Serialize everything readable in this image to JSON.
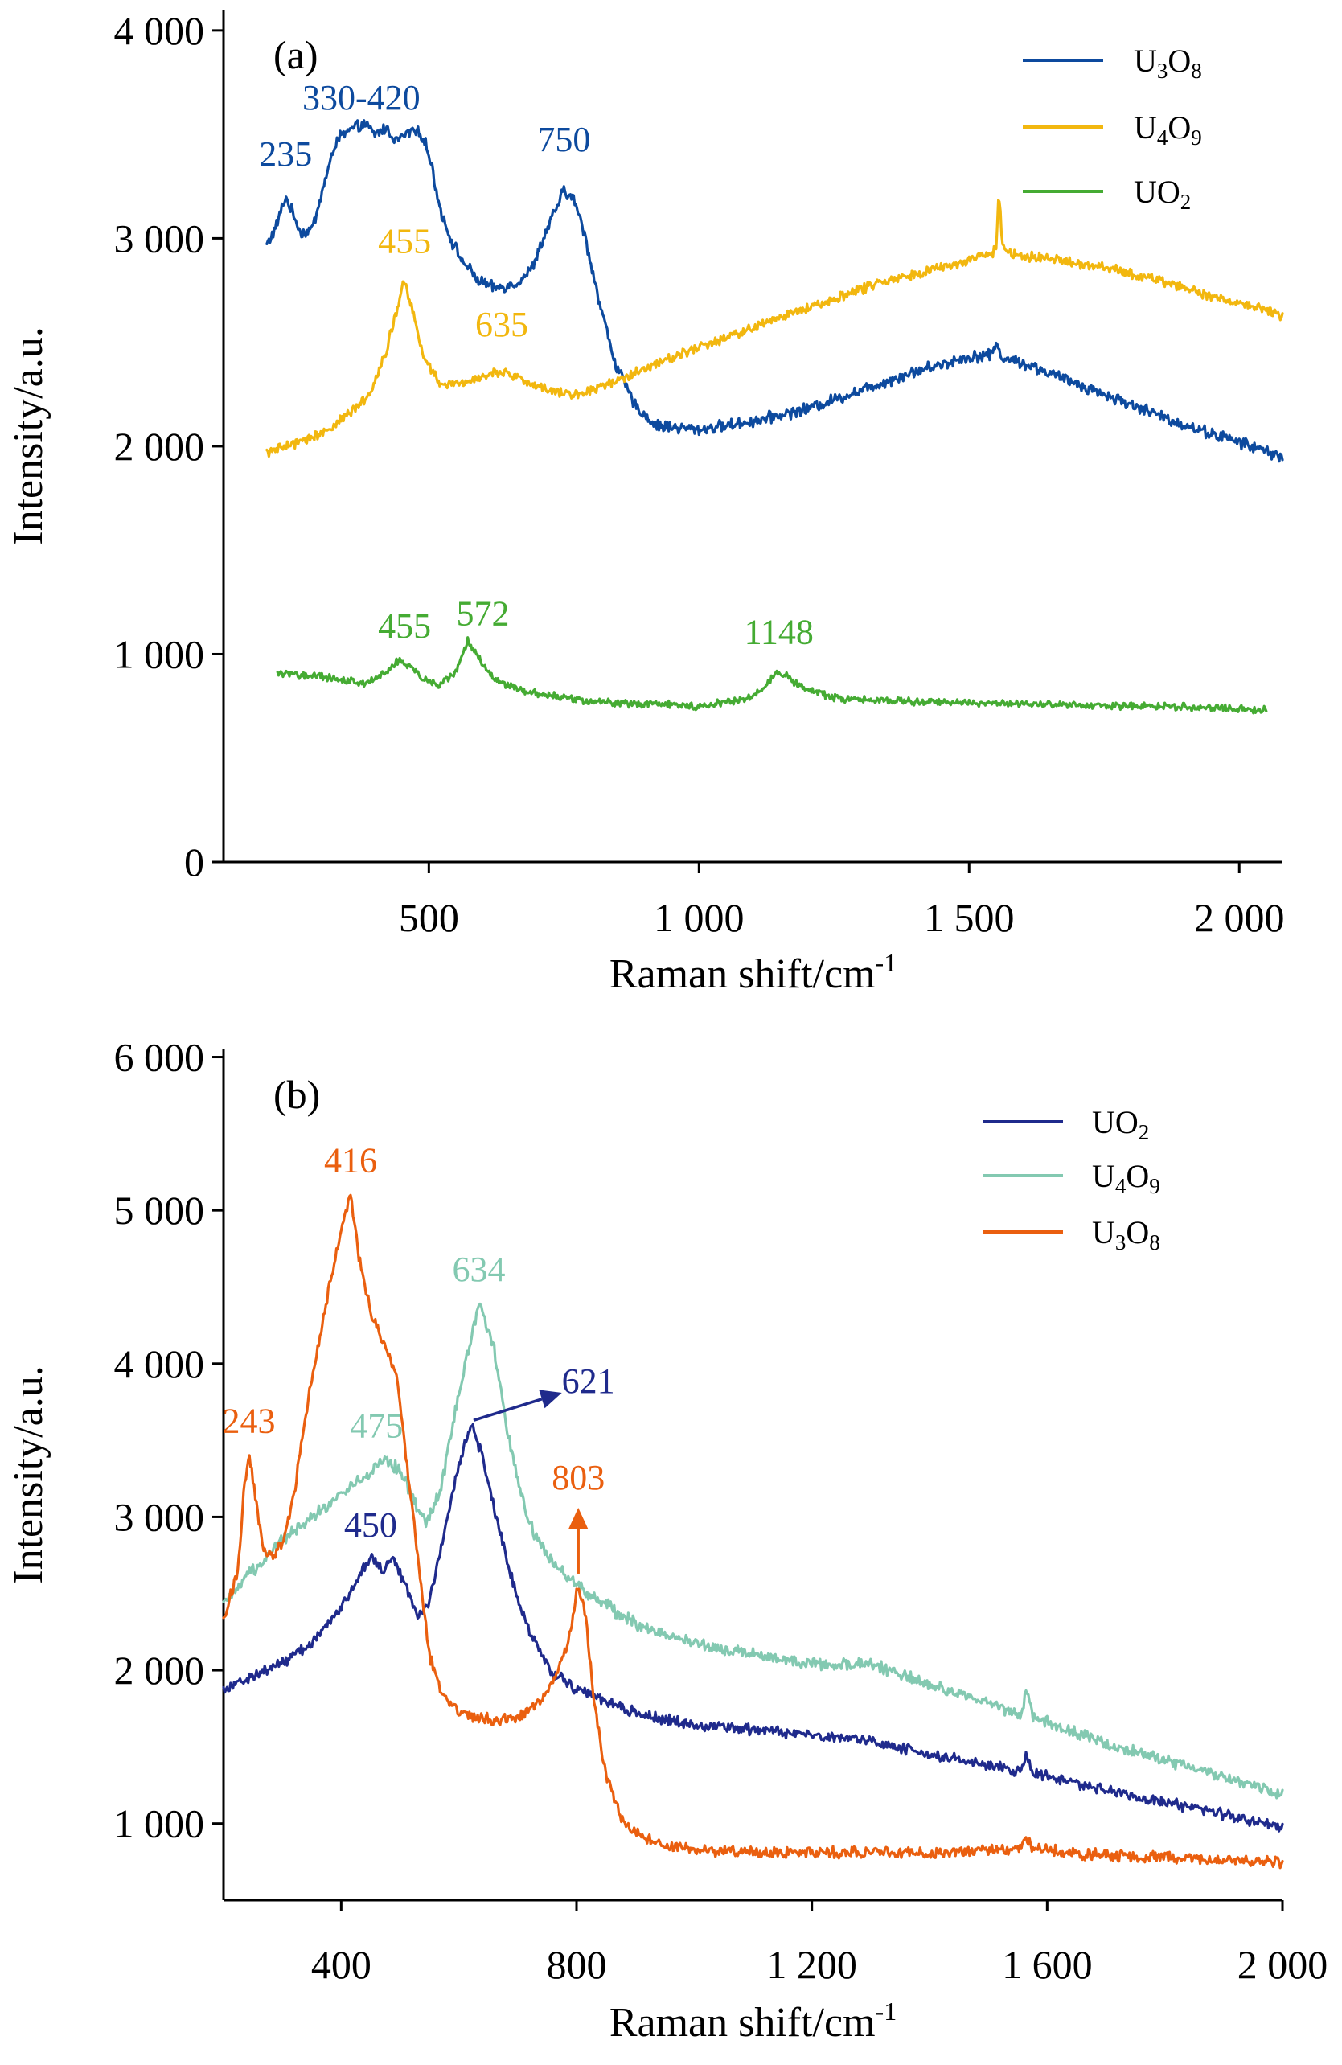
{
  "chart_data": [
    {
      "panel": "(a)",
      "type": "line",
      "xlabel": "Raman shift/cm",
      "xlabel_sup": "-1",
      "ylabel": "Intensity/a.u.",
      "xlim": [
        120,
        2080
      ],
      "ylim": [
        0,
        4100
      ],
      "xticks": [
        500,
        1000,
        1500,
        2000
      ],
      "xtick_labels": [
        "500",
        "1 000",
        "1 500",
        "2 000"
      ],
      "yticks": [
        0,
        1000,
        2000,
        3000,
        4000
      ],
      "ytick_labels": [
        "0",
        "1 000",
        "2 000",
        "3 000",
        "4 000"
      ],
      "legend_position": "top-right",
      "series": [
        {
          "label_parts": [
            "U",
            "3",
            "O",
            "8"
          ],
          "color": "#0d4a9e",
          "noise": 22,
          "points": [
            [
              200,
              2970
            ],
            [
              215,
              3040
            ],
            [
              235,
              3200
            ],
            [
              248,
              3120
            ],
            [
              265,
              3020
            ],
            [
              285,
              3050
            ],
            [
              305,
              3250
            ],
            [
              330,
              3480
            ],
            [
              355,
              3520
            ],
            [
              380,
              3550
            ],
            [
              400,
              3500
            ],
            [
              420,
              3530
            ],
            [
              440,
              3470
            ],
            [
              470,
              3520
            ],
            [
              490,
              3490
            ],
            [
              505,
              3350
            ],
            [
              520,
              3150
            ],
            [
              540,
              3000
            ],
            [
              560,
              2900
            ],
            [
              590,
              2800
            ],
            [
              620,
              2760
            ],
            [
              660,
              2780
            ],
            [
              690,
              2850
            ],
            [
              720,
              3050
            ],
            [
              750,
              3230
            ],
            [
              770,
              3180
            ],
            [
              790,
              3000
            ],
            [
              815,
              2700
            ],
            [
              845,
              2400
            ],
            [
              880,
              2200
            ],
            [
              920,
              2100
            ],
            [
              1000,
              2080
            ],
            [
              1100,
              2120
            ],
            [
              1200,
              2180
            ],
            [
              1300,
              2270
            ],
            [
              1400,
              2360
            ],
            [
              1500,
              2430
            ],
            [
              1540,
              2440
            ],
            [
              1550,
              2490
            ],
            [
              1560,
              2430
            ],
            [
              1600,
              2400
            ],
            [
              1700,
              2300
            ],
            [
              1800,
              2200
            ],
            [
              1900,
              2100
            ],
            [
              2000,
              2020
            ],
            [
              2080,
              1950
            ]
          ]
        },
        {
          "label_parts": [
            "U",
            "4",
            "O",
            "9"
          ],
          "color": "#f2b70f",
          "noise": 18,
          "points": [
            [
              200,
              1970
            ],
            [
              250,
              2010
            ],
            [
              300,
              2060
            ],
            [
              350,
              2150
            ],
            [
              390,
              2250
            ],
            [
              420,
              2450
            ],
            [
              445,
              2700
            ],
            [
              455,
              2800
            ],
            [
              470,
              2650
            ],
            [
              490,
              2430
            ],
            [
              520,
              2300
            ],
            [
              560,
              2300
            ],
            [
              600,
              2340
            ],
            [
              635,
              2360
            ],
            [
              670,
              2320
            ],
            [
              720,
              2270
            ],
            [
              780,
              2250
            ],
            [
              850,
              2320
            ],
            [
              950,
              2430
            ],
            [
              1050,
              2520
            ],
            [
              1150,
              2620
            ],
            [
              1250,
              2710
            ],
            [
              1350,
              2800
            ],
            [
              1450,
              2860
            ],
            [
              1540,
              2920
            ],
            [
              1550,
              2960
            ],
            [
              1555,
              3230
            ],
            [
              1562,
              2960
            ],
            [
              1580,
              2920
            ],
            [
              1650,
              2900
            ],
            [
              1750,
              2860
            ],
            [
              1850,
              2800
            ],
            [
              1950,
              2720
            ],
            [
              2000,
              2690
            ],
            [
              2080,
              2630
            ]
          ]
        },
        {
          "label_parts": [
            "U",
            "O",
            "2",
            ""
          ],
          "color": "#45ab33",
          "noise": 14,
          "points": [
            [
              220,
              910
            ],
            [
              300,
              890
            ],
            [
              380,
              860
            ],
            [
              420,
              910
            ],
            [
              445,
              970
            ],
            [
              460,
              950
            ],
            [
              490,
              880
            ],
            [
              520,
              850
            ],
            [
              550,
              920
            ],
            [
              572,
              1060
            ],
            [
              590,
              990
            ],
            [
              620,
              880
            ],
            [
              680,
              820
            ],
            [
              800,
              770
            ],
            [
              1000,
              750
            ],
            [
              1100,
              790
            ],
            [
              1148,
              920
            ],
            [
              1190,
              840
            ],
            [
              1250,
              790
            ],
            [
              1400,
              770
            ],
            [
              1600,
              760
            ],
            [
              1800,
              750
            ],
            [
              1900,
              745
            ],
            [
              2050,
              730
            ]
          ]
        }
      ],
      "annotations": [
        {
          "text": "235",
          "x": 235,
          "y": 3350,
          "series": 0
        },
        {
          "text": "330-420",
          "x": 375,
          "y": 3620,
          "series": 0
        },
        {
          "text": "750",
          "x": 750,
          "y": 3420,
          "series": 0
        },
        {
          "text": "455",
          "x": 455,
          "y": 2930,
          "series": 1
        },
        {
          "text": "635",
          "x": 635,
          "y": 2530,
          "series": 1
        },
        {
          "text": "455",
          "x": 455,
          "y": 1080,
          "series": 2
        },
        {
          "text": "572",
          "x": 600,
          "y": 1140,
          "series": 2
        },
        {
          "text": "1148",
          "x": 1148,
          "y": 1050,
          "series": 2
        }
      ]
    },
    {
      "panel": "(b)",
      "type": "line",
      "xlabel": "Raman shift/cm",
      "xlabel_sup": "-1",
      "ylabel": "Intensity/a.u.",
      "xlim": [
        200,
        2000
      ],
      "ylim": [
        500,
        6050
      ],
      "xticks": [
        400,
        800,
        1200,
        1600,
        2000
      ],
      "xtick_labels": [
        "400",
        "800",
        "1 200",
        "1 600",
        "2 000"
      ],
      "yticks": [
        1000,
        2000,
        3000,
        4000,
        5000,
        6000
      ],
      "ytick_labels": [
        "1 000",
        "2 000",
        "3 000",
        "4 000",
        "5 000",
        "6 000"
      ],
      "legend_position": "top-right",
      "series": [
        {
          "label_parts": [
            "U",
            "O",
            "2",
            ""
          ],
          "color": "#1f2a8c",
          "noise": 28,
          "points": [
            [
              200,
              1880
            ],
            [
              250,
              1960
            ],
            [
              300,
              2050
            ],
            [
              350,
              2180
            ],
            [
              400,
              2400
            ],
            [
              430,
              2620
            ],
            [
              450,
              2750
            ],
            [
              470,
              2650
            ],
            [
              490,
              2720
            ],
            [
              510,
              2550
            ],
            [
              530,
              2350
            ],
            [
              550,
              2450
            ],
            [
              575,
              2900
            ],
            [
              600,
              3350
            ],
            [
              621,
              3600
            ],
            [
              640,
              3400
            ],
            [
              660,
              3050
            ],
            [
              690,
              2600
            ],
            [
              720,
              2250
            ],
            [
              760,
              1980
            ],
            [
              800,
              1880
            ],
            [
              900,
              1720
            ],
            [
              1000,
              1640
            ],
            [
              1200,
              1580
            ],
            [
              1300,
              1540
            ],
            [
              1400,
              1450
            ],
            [
              1500,
              1380
            ],
            [
              1555,
              1330
            ],
            [
              1565,
              1460
            ],
            [
              1575,
              1330
            ],
            [
              1700,
              1220
            ],
            [
              1850,
              1100
            ],
            [
              2000,
              980
            ]
          ]
        },
        {
          "label_parts": [
            "U",
            "4",
            "O",
            "9"
          ],
          "color": "#83c9b1",
          "noise": 32,
          "points": [
            [
              200,
              2420
            ],
            [
              250,
              2650
            ],
            [
              300,
              2850
            ],
            [
              350,
              3000
            ],
            [
              400,
              3150
            ],
            [
              450,
              3300
            ],
            [
              475,
              3380
            ],
            [
              500,
              3300
            ],
            [
              530,
              3050
            ],
            [
              545,
              2950
            ],
            [
              570,
              3200
            ],
            [
              600,
              3800
            ],
            [
              634,
              4400
            ],
            [
              660,
              4100
            ],
            [
              690,
              3400
            ],
            [
              720,
              2950
            ],
            [
              760,
              2700
            ],
            [
              800,
              2550
            ],
            [
              900,
              2300
            ],
            [
              1000,
              2180
            ],
            [
              1100,
              2100
            ],
            [
              1200,
              2040
            ],
            [
              1300,
              2040
            ],
            [
              1350,
              1980
            ],
            [
              1400,
              1900
            ],
            [
              1500,
              1790
            ],
            [
              1555,
              1700
            ],
            [
              1565,
              1880
            ],
            [
              1575,
              1700
            ],
            [
              1700,
              1520
            ],
            [
              1850,
              1360
            ],
            [
              2000,
              1190
            ]
          ]
        },
        {
          "label_parts": [
            "U",
            "3",
            "O",
            "8"
          ],
          "color": "#ea5f0f",
          "noise": 30,
          "points": [
            [
              200,
              2330
            ],
            [
              225,
              2650
            ],
            [
              235,
              3200
            ],
            [
              243,
              3430
            ],
            [
              255,
              3100
            ],
            [
              268,
              2780
            ],
            [
              285,
              2750
            ],
            [
              300,
              2820
            ],
            [
              320,
              3150
            ],
            [
              345,
              3800
            ],
            [
              370,
              4300
            ],
            [
              390,
              4700
            ],
            [
              405,
              4950
            ],
            [
              416,
              5100
            ],
            [
              430,
              4700
            ],
            [
              450,
              4350
            ],
            [
              470,
              4150
            ],
            [
              485,
              4020
            ],
            [
              495,
              3900
            ],
            [
              510,
              3400
            ],
            [
              530,
              2750
            ],
            [
              550,
              2100
            ],
            [
              570,
              1850
            ],
            [
              600,
              1720
            ],
            [
              650,
              1680
            ],
            [
              700,
              1680
            ],
            [
              740,
              1800
            ],
            [
              770,
              2000
            ],
            [
              790,
              2250
            ],
            [
              803,
              2570
            ],
            [
              815,
              2350
            ],
            [
              830,
              1800
            ],
            [
              850,
              1300
            ],
            [
              880,
              1000
            ],
            [
              930,
              870
            ],
            [
              1000,
              830
            ],
            [
              1200,
              810
            ],
            [
              1400,
              810
            ],
            [
              1500,
              820
            ],
            [
              1555,
              840
            ],
            [
              1565,
              930
            ],
            [
              1575,
              830
            ],
            [
              1700,
              790
            ],
            [
              1850,
              770
            ],
            [
              2000,
              750
            ]
          ]
        }
      ],
      "annotations": [
        {
          "text": "416",
          "x": 416,
          "y": 5250,
          "series": 2
        },
        {
          "text": "243",
          "x": 243,
          "y": 3550,
          "series": 2
        },
        {
          "text": "803",
          "x": 803,
          "y": 3180,
          "series": 2
        },
        {
          "text": "634",
          "x": 634,
          "y": 4540,
          "series": 1
        },
        {
          "text": "475",
          "x": 460,
          "y": 3520,
          "series": 1
        },
        {
          "text": "450",
          "x": 450,
          "y": 2870,
          "series": 0
        },
        {
          "text": "621",
          "x": 820,
          "y": 3810,
          "series": 0
        }
      ],
      "arrows": [
        {
          "from": [
            625,
            3630
          ],
          "to": [
            775,
            3810
          ],
          "series": 0
        },
        {
          "from": [
            803,
            2630
          ],
          "to": [
            803,
            3060
          ],
          "series": 2
        }
      ]
    }
  ]
}
